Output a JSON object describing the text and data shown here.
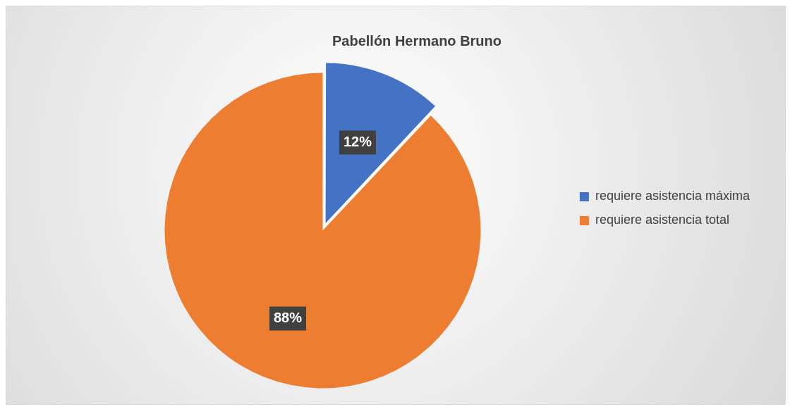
{
  "chart_data": {
    "type": "pie",
    "title": "Pabellón Hermano Bruno",
    "categories": [
      "requiere asistencia máxima",
      "requiere asistencia total"
    ],
    "values": [
      12,
      88
    ],
    "colors": [
      "#4472c4",
      "#ed7d31"
    ],
    "value_labels": [
      "12%",
      "88%"
    ],
    "legend": "right"
  }
}
